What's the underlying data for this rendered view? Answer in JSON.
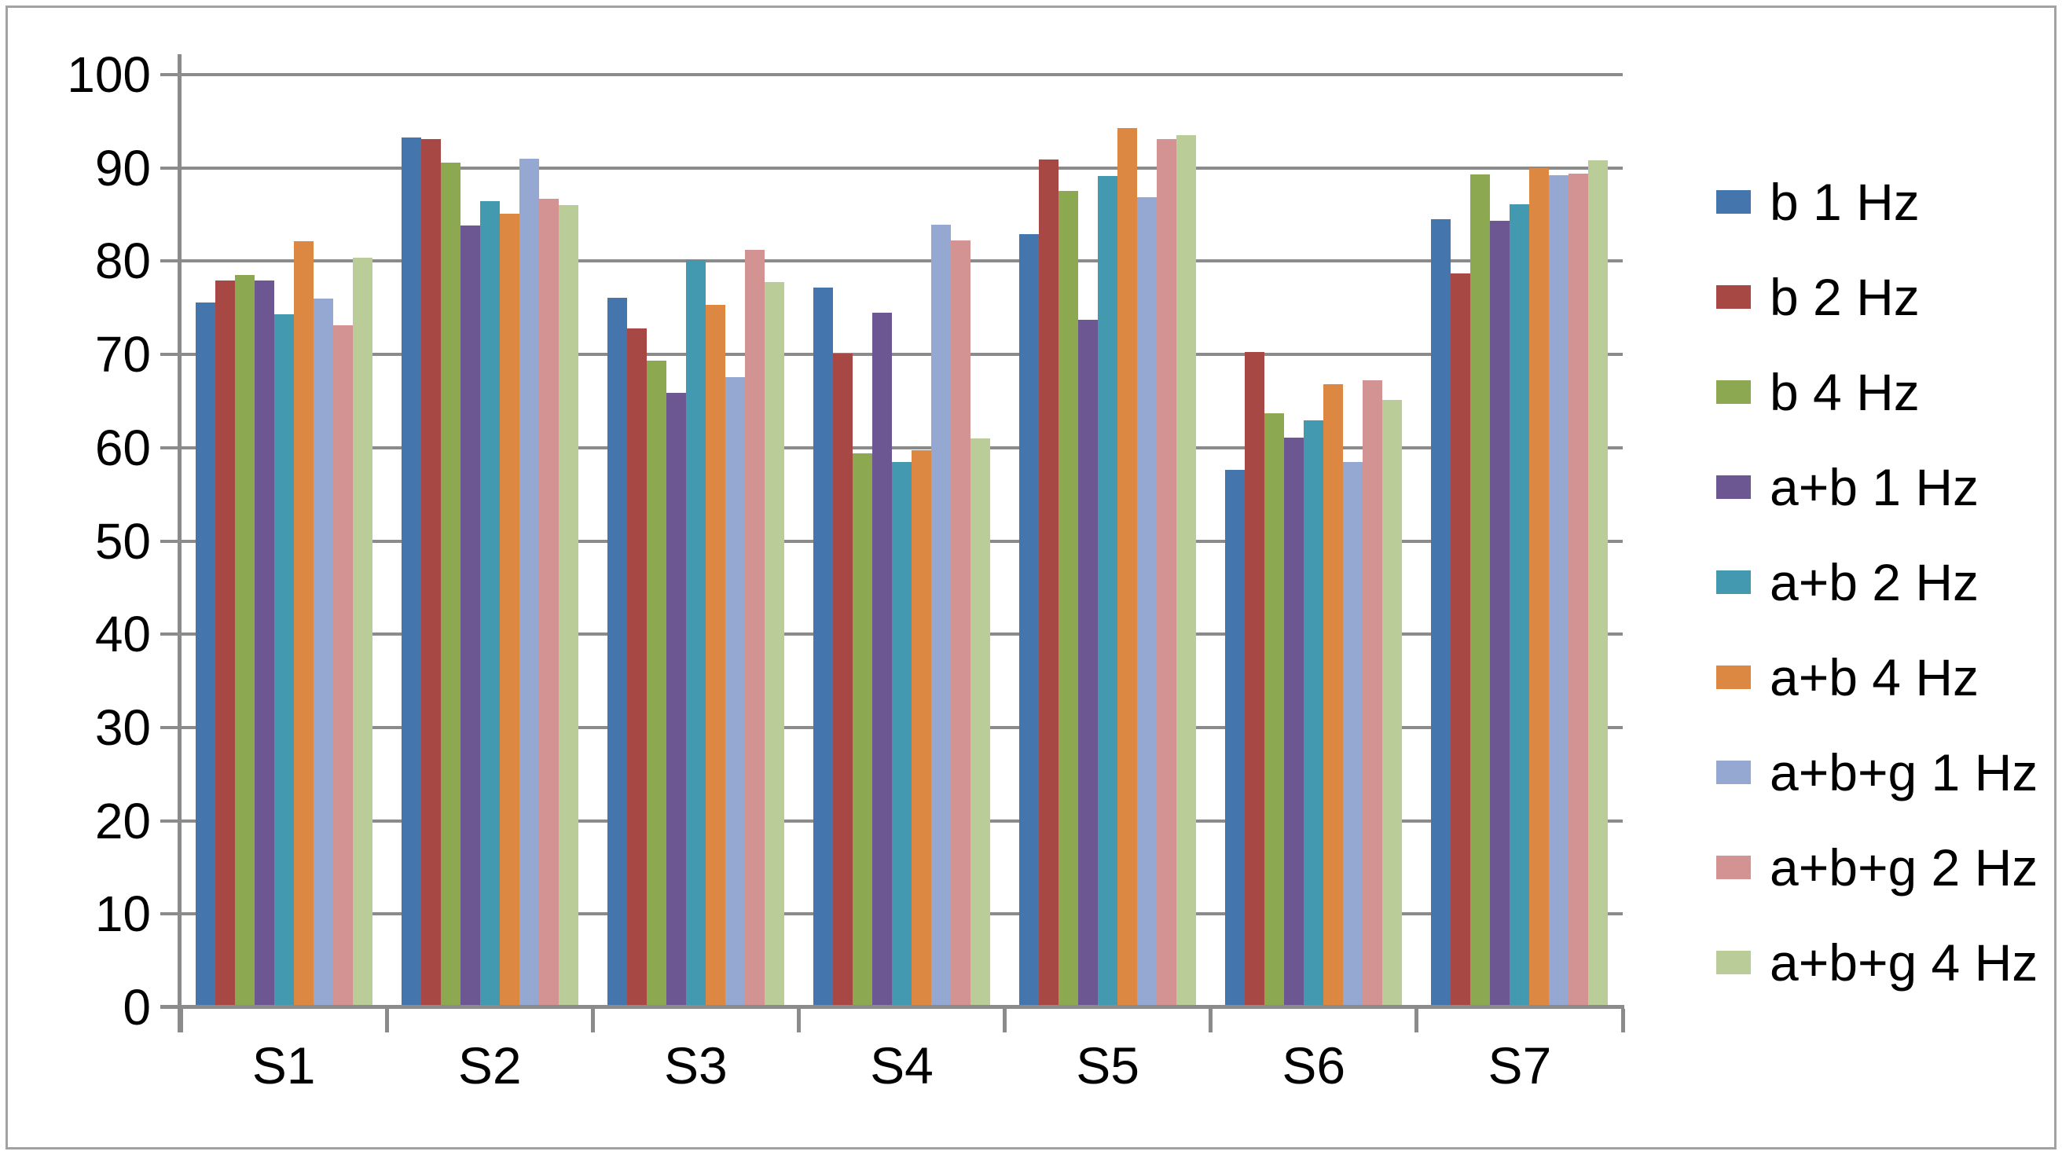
{
  "colors": {
    "background": "#ffffff",
    "gridline": "#8b8b8b",
    "axis": "#8b8b8b",
    "frame_border": "#a2a2a2",
    "text": "#000000"
  },
  "chart_data": {
    "type": "bar",
    "title": "",
    "xlabel": "",
    "ylabel": "",
    "categories": [
      "S1",
      "S2",
      "S3",
      "S4",
      "S5",
      "S6",
      "S7"
    ],
    "series": [
      {
        "name": "b 1 Hz",
        "color": "#4475ac",
        "values": [
          75.6,
          93.3,
          76.1,
          77.2,
          82.9,
          57.6,
          84.5
        ]
      },
      {
        "name": "b 2 Hz",
        "color": "#a84845",
        "values": [
          77.9,
          93.1,
          72.8,
          70.1,
          90.9,
          70.3,
          78.7
        ]
      },
      {
        "name": "b 4 Hz",
        "color": "#8ca851",
        "values": [
          78.5,
          90.6,
          69.3,
          59.4,
          87.5,
          63.7,
          89.3
        ]
      },
      {
        "name": "a+b 1 Hz",
        "color": "#6c5793",
        "values": [
          77.9,
          83.8,
          65.9,
          74.5,
          73.7,
          61.1,
          84.3
        ]
      },
      {
        "name": "a+b 2 Hz",
        "color": "#4299b0",
        "values": [
          74.3,
          86.4,
          80.1,
          58.5,
          89.1,
          62.9,
          86.1
        ]
      },
      {
        "name": "a+b 4 Hz",
        "color": "#dc8742",
        "values": [
          82.1,
          85.1,
          75.3,
          59.7,
          94.3,
          66.8,
          90.0
        ]
      },
      {
        "name": "a+b+g 1 Hz",
        "color": "#95a8d2",
        "values": [
          76.0,
          91.0,
          67.6,
          83.9,
          86.9,
          58.5,
          89.2
        ]
      },
      {
        "name": "a+b+g 2 Hz",
        "color": "#d29392",
        "values": [
          73.1,
          86.7,
          81.2,
          82.2,
          93.1,
          67.2,
          89.4
        ]
      },
      {
        "name": "a+b+g 4 Hz",
        "color": "#bacc97",
        "values": [
          80.4,
          86.0,
          77.8,
          61.0,
          93.5,
          65.1,
          90.8
        ]
      }
    ],
    "ylim": [
      0,
      100
    ],
    "yticks": [
      0,
      10,
      20,
      30,
      40,
      50,
      60,
      70,
      80,
      90,
      100
    ],
    "grid": true,
    "legend_position": "right"
  }
}
